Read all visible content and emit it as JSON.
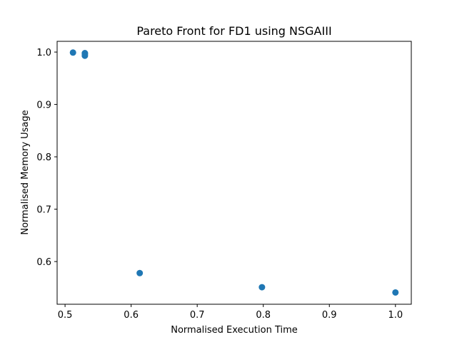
{
  "chart_data": {
    "type": "scatter",
    "title": "Pareto Front for FD1 using NSGAIII",
    "xlabel": "Normalised Execution Time",
    "ylabel": "Normalised Memory Usage",
    "xlim": [
      0.488,
      1.024
    ],
    "ylim": [
      0.5185,
      1.0205
    ],
    "xticks": [
      "0.5",
      "0.6",
      "0.7",
      "0.8",
      "0.9",
      "1.0"
    ],
    "yticks": [
      "0.6",
      "0.7",
      "0.8",
      "0.9",
      "1.0"
    ],
    "grid": false,
    "color": "#1f77b4",
    "series": [
      {
        "x": [
          0.512,
          0.53,
          0.53,
          0.53,
          0.613,
          0.798,
          1.0
        ],
        "y": [
          0.999,
          0.998,
          0.996,
          0.993,
          0.578,
          0.551,
          0.541
        ]
      }
    ]
  }
}
